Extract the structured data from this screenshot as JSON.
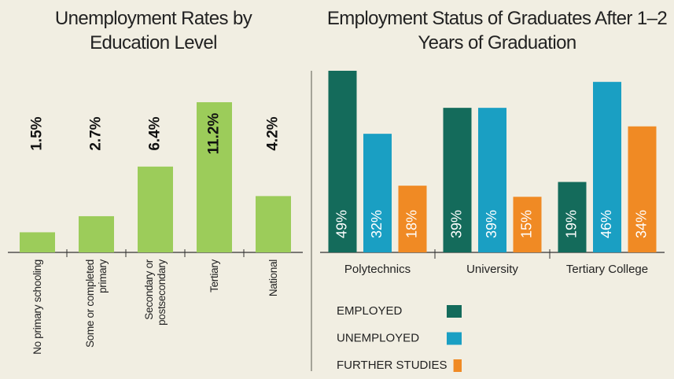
{
  "chart_data": [
    {
      "type": "bar",
      "title": "Unemployment Rates by Education Level",
      "categories": [
        "No primary schooling",
        "Some or completed primary",
        "Secondary or postsecondary",
        "Tertiary",
        "National"
      ],
      "values": [
        1.5,
        2.7,
        6.4,
        11.2,
        4.2
      ],
      "value_labels": [
        "1.5%",
        "2.7%",
        "6.4%",
        "11.2%",
        "4.2%"
      ],
      "color": "#9ccc5a"
    },
    {
      "type": "grouped-bar",
      "title": "Employment Status of Graduates After 1–2 Years of Graduation",
      "categories": [
        "Polytechnics",
        "University",
        "Tertiary College"
      ],
      "series": [
        {
          "name": "EMPLOYED",
          "color": "#146b5b",
          "values": [
            49,
            39,
            19
          ],
          "value_labels": [
            "49%",
            "39%",
            "19%"
          ]
        },
        {
          "name": "UNEMPLOYED",
          "color": "#1a9fc3",
          "values": [
            32,
            39,
            46
          ],
          "value_labels": [
            "32%",
            "39%",
            "46%"
          ]
        },
        {
          "name": "FURTHER STUDIES",
          "color": "#f08a24",
          "values": [
            18,
            15,
            34
          ],
          "value_labels": [
            "18%",
            "15%",
            "34%"
          ]
        }
      ]
    }
  ]
}
